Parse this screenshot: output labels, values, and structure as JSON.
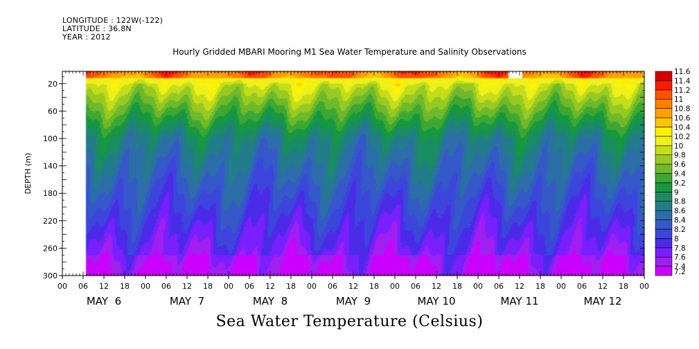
{
  "header": {
    "longitude": "LONGITUDE : 122W(-122)",
    "latitude": "LATITUDE : 36.8N",
    "year": "YEAR : 2012"
  },
  "chart_data": {
    "type": "heatmap",
    "title": "Hourly Gridded MBARI Mooring M1 Sea Water Temperature and Salinity Observations",
    "colorbar_title": "Sea Water Temperature (Celsius)",
    "ylabel": "DEPTH (m)",
    "y_inverted": true,
    "ylim": [
      300,
      2
    ],
    "y_ticks": [
      20,
      60,
      100,
      140,
      180,
      220,
      260,
      300
    ],
    "x_hour_ticks": [
      "00",
      "06",
      "12",
      "18",
      "00",
      "06",
      "12",
      "18",
      "00",
      "06",
      "12",
      "18",
      "00",
      "06",
      "12",
      "18",
      "00",
      "06",
      "12",
      "18",
      "00",
      "06",
      "12",
      "18",
      "00",
      "06",
      "12",
      "18",
      "00"
    ],
    "x_day_labels": [
      "MAY  6",
      "MAY  7",
      "MAY  8",
      "MAY  9",
      "MAY 10",
      "MAY 11",
      "MAY 12"
    ],
    "data_start_hour": 7,
    "total_hours": 168,
    "color_levels": [
      "7.2",
      "7.4",
      "7.6",
      "7.8",
      "8",
      "8.2",
      "8.4",
      "8.6",
      "8.8",
      "9",
      "9.2",
      "9.4",
      "9.6",
      "9.8",
      "10",
      "10.2",
      "10.4",
      "10.6",
      "10.8",
      "11",
      "11.2",
      "11.4",
      "11.6"
    ],
    "colors": [
      "#cc00ff",
      "#a020f0",
      "#7a1fff",
      "#4b2be8",
      "#3c46dc",
      "#3559c8",
      "#2c6ea8",
      "#237c8a",
      "#1a8c63",
      "#17983f",
      "#3ca833",
      "#6eb82a",
      "#97c923",
      "#c4dd18",
      "#eef01a",
      "#fff200",
      "#ffc400",
      "#ff9f00",
      "#ff7f00",
      "#ff4f00",
      "#ff1a00",
      "#d40000",
      "#a60000"
    ],
    "gaps": [
      {
        "start_hour": 0,
        "end_hour": 7,
        "depth_min": 2,
        "depth_max": 300
      },
      {
        "start_hour": 129,
        "end_hour": 133,
        "depth_min": 2,
        "depth_max": 12
      }
    ]
  }
}
